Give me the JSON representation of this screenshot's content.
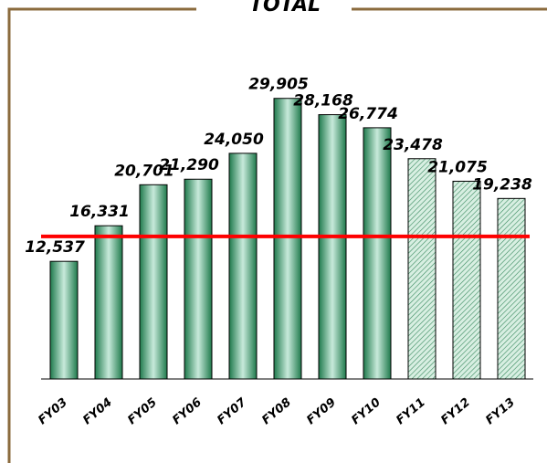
{
  "chart_data": {
    "type": "bar",
    "title": "TOTAL",
    "categories": [
      "FY03",
      "FY04",
      "FY05",
      "FY06",
      "FY07",
      "FY08",
      "FY09",
      "FY10",
      "FY11",
      "FY12",
      "FY13"
    ],
    "values": [
      12537,
      16331,
      20701,
      21290,
      24050,
      29905,
      28168,
      26774,
      23478,
      21075,
      19238
    ],
    "value_labels": [
      "12,537",
      "16,331",
      "20,701",
      "21,290",
      "24,050",
      "29,905",
      "28,168",
      "26,774",
      "23,478",
      "21,075",
      "19,238"
    ],
    "forecast": [
      false,
      false,
      false,
      false,
      false,
      false,
      false,
      false,
      true,
      true,
      true
    ],
    "color": "#2e8b57",
    "reference_line": 15200,
    "reference_color": "#ff0000",
    "ylim": [
      0,
      40000
    ]
  }
}
